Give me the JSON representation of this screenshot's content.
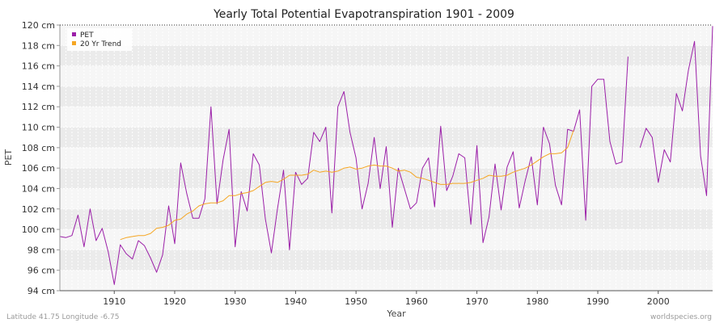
{
  "chart_data": {
    "type": "line",
    "title": "Yearly Total Potential Evapotranspiration 1901 - 2009",
    "xlabel": "Year",
    "ylabel": "PET",
    "xlim": [
      1901,
      2009
    ],
    "ylim": [
      94,
      120
    ],
    "x_ticks": [
      1910,
      1920,
      1930,
      1940,
      1950,
      1960,
      1970,
      1980,
      1990,
      2000
    ],
    "y_ticks": [
      94,
      96,
      98,
      100,
      102,
      104,
      106,
      108,
      110,
      112,
      114,
      116,
      118,
      120
    ],
    "y_tick_labels": [
      "94 cm",
      "96 cm",
      "98 cm",
      "100 cm",
      "102 cm",
      "104 cm",
      "106 cm",
      "108 cm",
      "110 cm",
      "112 cm",
      "114 cm",
      "116 cm",
      "118 cm",
      "120 cm"
    ],
    "grid": true,
    "legend_position": "top-left",
    "series": [
      {
        "name": "PET",
        "color": "#9b1fa8",
        "x": [
          1901,
          1902,
          1903,
          1904,
          1905,
          1906,
          1907,
          1908,
          1909,
          1910,
          1911,
          1912,
          1913,
          1914,
          1915,
          1916,
          1917,
          1918,
          1919,
          1920,
          1921,
          1922,
          1923,
          1924,
          1925,
          1926,
          1927,
          1928,
          1929,
          1930,
          1931,
          1932,
          1933,
          1934,
          1935,
          1936,
          1937,
          1938,
          1939,
          1940,
          1941,
          1942,
          1943,
          1944,
          1945,
          1946,
          1947,
          1948,
          1949,
          1950,
          1951,
          1952,
          1953,
          1954,
          1955,
          1956,
          1957,
          1958,
          1959,
          1960,
          1961,
          1962,
          1963,
          1964,
          1965,
          1966,
          1967,
          1968,
          1969,
          1970,
          1971,
          1972,
          1973,
          1974,
          1975,
          1976,
          1977,
          1978,
          1979,
          1980,
          1981,
          1982,
          1983,
          1984,
          1985,
          1986,
          1987,
          1988,
          1989,
          1990,
          1991,
          1992,
          1993,
          1994,
          1995,
          1996,
          1997,
          1998,
          1999,
          2000,
          2001,
          2002,
          2003,
          2004,
          2005,
          2006,
          2007,
          2008,
          2009
        ],
        "values": [
          99.3,
          99.2,
          99.4,
          101.4,
          98.3,
          102.0,
          98.9,
          100.1,
          97.8,
          94.6,
          98.5,
          97.6,
          97.1,
          98.9,
          98.4,
          97.2,
          95.8,
          97.5,
          102.3,
          98.6,
          106.5,
          103.5,
          101.1,
          101.1,
          103.0,
          112.0,
          102.5,
          106.8,
          109.8,
          98.3,
          103.7,
          101.8,
          107.4,
          106.3,
          101.0,
          97.7,
          102.0,
          105.8,
          98.0,
          105.6,
          104.4,
          105.0,
          109.5,
          108.6,
          110.0,
          101.6,
          112.0,
          113.5,
          109.5,
          107.0,
          102.0,
          104.5,
          109.0,
          104.0,
          108.1,
          100.2,
          106.0,
          104.0,
          102.0,
          102.6,
          106.0,
          107.0,
          102.2,
          110.1,
          103.8,
          105.2,
          107.4,
          107.0,
          100.5,
          108.2,
          98.7,
          101.2,
          106.4,
          101.9,
          106.1,
          107.6,
          102.1,
          104.8,
          107.1,
          102.4,
          110.0,
          108.4,
          104.3,
          102.4,
          109.8,
          109.6,
          111.7,
          100.9,
          114.0,
          114.7,
          114.7,
          108.6,
          106.4,
          106.6,
          116.9,
          null,
          108.0,
          109.9,
          109.0,
          104.6,
          107.8,
          106.6,
          113.3,
          111.6,
          115.6,
          118.4,
          107.2,
          103.3,
          119.9
        ]
      },
      {
        "name": "20 Yr Trend",
        "color": "#f5a623",
        "x": [
          1911,
          1912,
          1913,
          1914,
          1915,
          1916,
          1917,
          1918,
          1919,
          1920,
          1921,
          1922,
          1923,
          1924,
          1925,
          1926,
          1927,
          1928,
          1929,
          1930,
          1931,
          1932,
          1933,
          1934,
          1935,
          1936,
          1937,
          1938,
          1939,
          1940,
          1941,
          1942,
          1943,
          1944,
          1945,
          1946,
          1947,
          1948,
          1949,
          1950,
          1951,
          1952,
          1953,
          1954,
          1955,
          1956,
          1957,
          1958,
          1959,
          1960,
          1961,
          1962,
          1963,
          1964,
          1965,
          1966,
          1967,
          1968,
          1969,
          1970,
          1971,
          1972,
          1973,
          1974,
          1975,
          1976,
          1977,
          1978,
          1979,
          1980,
          1981,
          1982,
          1983,
          1984,
          1985,
          1986
        ],
        "values": [
          99.0,
          99.2,
          99.3,
          99.4,
          99.4,
          99.6,
          100.1,
          100.2,
          100.4,
          100.9,
          101.0,
          101.5,
          101.8,
          102.3,
          102.5,
          102.6,
          102.6,
          102.8,
          103.3,
          103.3,
          103.5,
          103.6,
          103.8,
          104.2,
          104.6,
          104.7,
          104.6,
          104.9,
          105.3,
          105.3,
          105.3,
          105.4,
          105.8,
          105.6,
          105.7,
          105.6,
          105.7,
          106.0,
          106.1,
          105.9,
          106.0,
          106.2,
          106.3,
          106.2,
          106.2,
          106.0,
          105.7,
          105.8,
          105.6,
          105.1,
          105.0,
          104.8,
          104.6,
          104.4,
          104.4,
          104.5,
          104.5,
          104.5,
          104.6,
          104.8,
          105.0,
          105.3,
          105.2,
          105.2,
          105.3,
          105.6,
          105.8,
          106.0,
          106.3,
          106.7,
          107.1,
          107.4,
          107.4,
          107.5,
          108.0,
          109.7
        ]
      }
    ]
  },
  "footer": {
    "left": "Latitude 41.75 Longitude -6.75",
    "right": "worldspecies.org"
  }
}
